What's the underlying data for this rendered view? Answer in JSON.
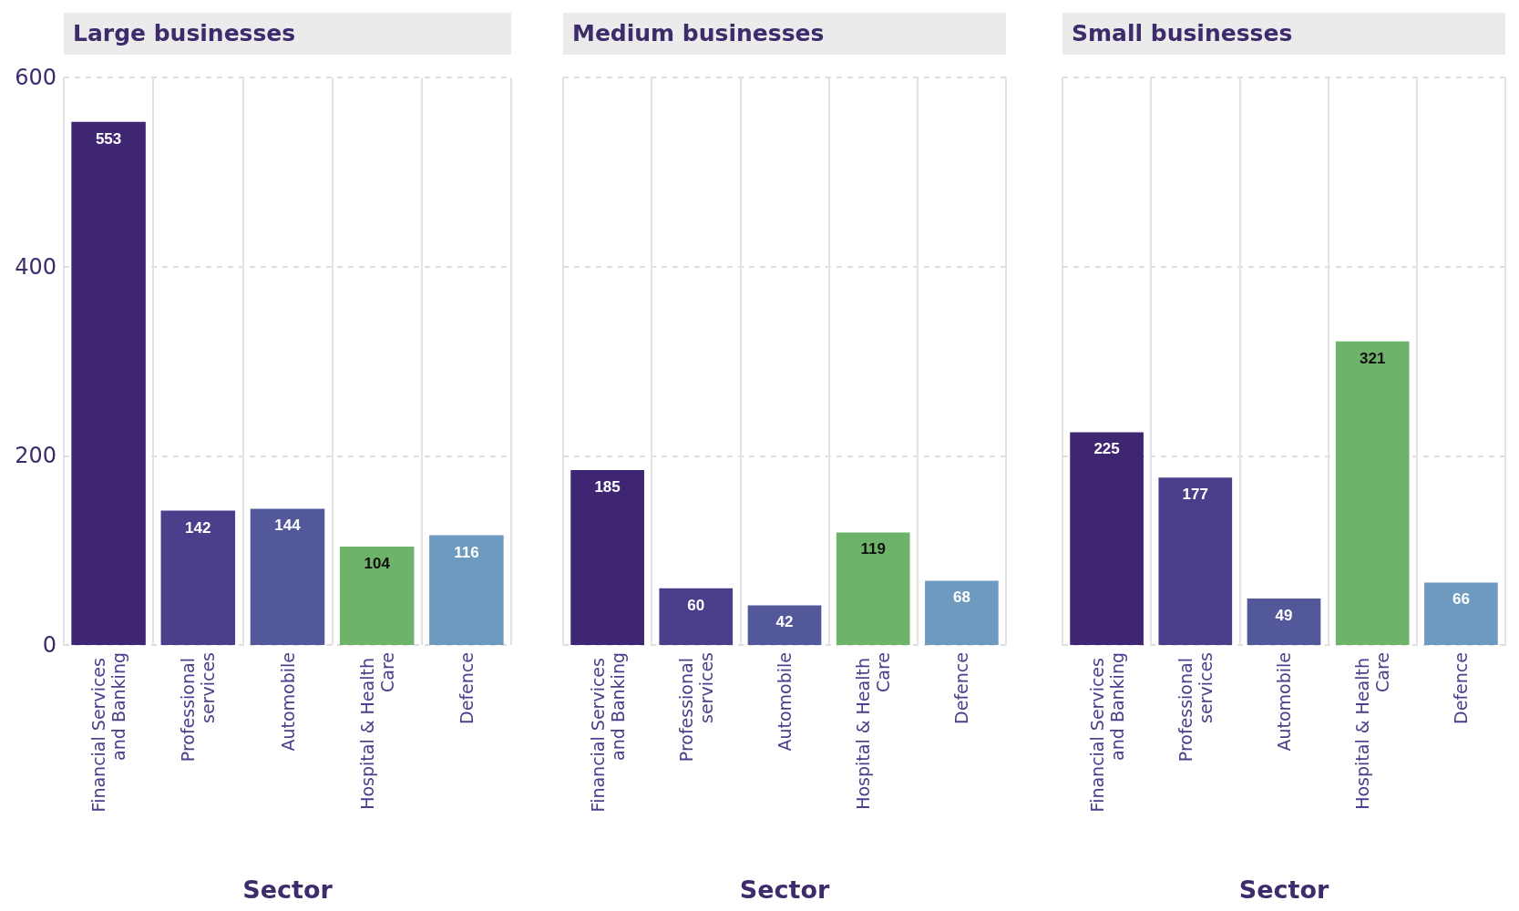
{
  "chart_data": [
    {
      "type": "bar",
      "title": "Large businesses",
      "xlabel": "Sector",
      "categories": [
        "Financial Services and Banking",
        "Professional services",
        "Automobile",
        "Hospital & Health Care",
        "Defence"
      ],
      "values": [
        553,
        142,
        144,
        104,
        116
      ],
      "colors": [
        "#3f2672",
        "#4a3f8a",
        "#52589a",
        "#6db36a",
        "#6e9ac0"
      ],
      "ylim": [
        0,
        600
      ],
      "yticks": [
        0,
        200,
        400,
        600
      ],
      "grid": "y",
      "data_labels": true
    },
    {
      "type": "bar",
      "title": "Medium businesses",
      "xlabel": "Sector",
      "categories": [
        "Financial Services and Banking",
        "Professional services",
        "Automobile",
        "Hospital & Health Care",
        "Defence"
      ],
      "values": [
        185,
        60,
        42,
        119,
        68
      ],
      "colors": [
        "#3f2672",
        "#4a3f8a",
        "#52589a",
        "#6db36a",
        "#6e9ac0"
      ],
      "ylim": [
        0,
        600
      ],
      "yticks": [
        0,
        200,
        400,
        600
      ],
      "grid": "y",
      "data_labels": true,
      "tick_labels": "x"
    },
    {
      "type": "bar",
      "title": "Small businesses",
      "xlabel": "Sector",
      "categories": [
        "Financial Services and Banking",
        "Professional services",
        "Automobile",
        "Hospital & Health Care",
        "Defence"
      ],
      "values": [
        225,
        177,
        49,
        321,
        66
      ],
      "colors": [
        "#3f2672",
        "#4a3f8a",
        "#52589a",
        "#6db36a",
        "#6e9ac0"
      ],
      "ylim": [
        0,
        600
      ],
      "yticks": [
        0,
        200,
        400,
        600
      ],
      "grid": "y",
      "data_labels": true,
      "tick_labels": "x"
    }
  ]
}
